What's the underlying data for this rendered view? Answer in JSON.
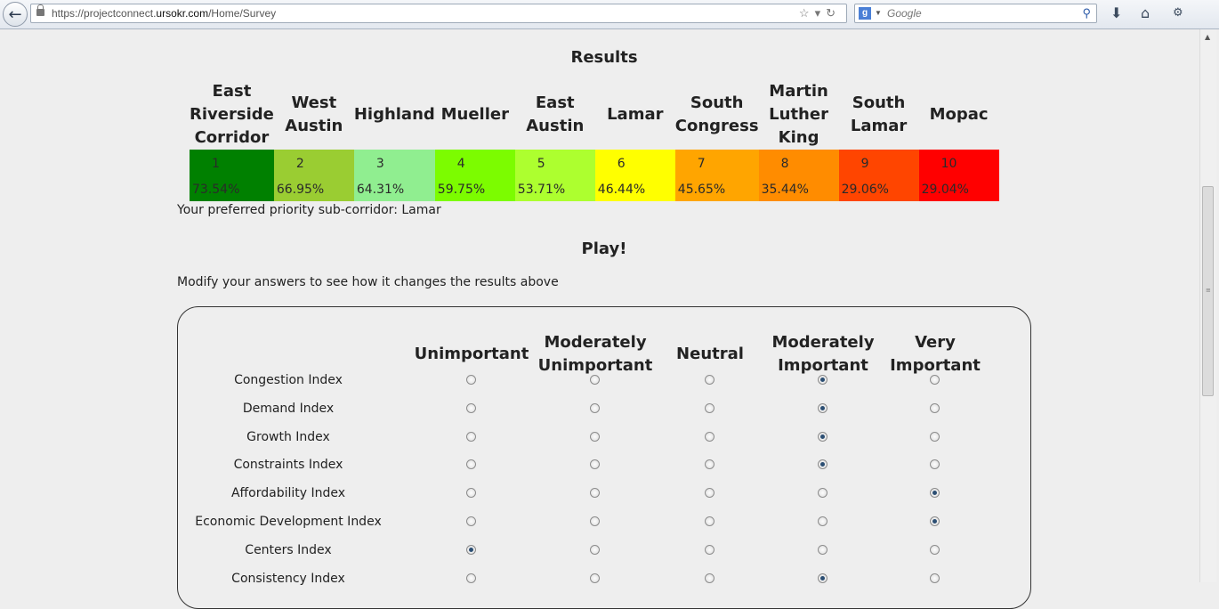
{
  "browser": {
    "url_prefix": "https://projectconnect.",
    "url_domain": "ursokr.com",
    "url_path": "/Home/Survey",
    "search_placeholder": "Google",
    "search_engine_letter": "g"
  },
  "results": {
    "title": "Results",
    "corridors": [
      {
        "name": "East Riverside Corridor",
        "rank": "1",
        "percent": "73.54%",
        "color": "#008000"
      },
      {
        "name": "West Austin",
        "rank": "2",
        "percent": "66.95%",
        "color": "#9acd32"
      },
      {
        "name": "Highland",
        "rank": "3",
        "percent": "64.31%",
        "color": "#90ee90"
      },
      {
        "name": "Mueller",
        "rank": "4",
        "percent": "59.75%",
        "color": "#7cfc00"
      },
      {
        "name": "East Austin",
        "rank": "5",
        "percent": "53.71%",
        "color": "#adff2f"
      },
      {
        "name": "Lamar",
        "rank": "6",
        "percent": "46.44%",
        "color": "#ffff00"
      },
      {
        "name": "South Congress",
        "rank": "7",
        "percent": "45.65%",
        "color": "#ffa500"
      },
      {
        "name": "Martin Luther King",
        "rank": "8",
        "percent": "35.44%",
        "color": "#ff8c00"
      },
      {
        "name": "South Lamar",
        "rank": "9",
        "percent": "29.06%",
        "color": "#ff4500"
      },
      {
        "name": "Mopac",
        "rank": "10",
        "percent": "29.04%",
        "color": "#ff0000"
      }
    ],
    "preferred_text": "Your preferred priority sub-corridor: Lamar"
  },
  "play": {
    "title": "Play!",
    "instructions": "Modify your answers to see how it changes the results above",
    "columns": [
      "Unimportant",
      "Moderately Unimportant",
      "Neutral",
      "Moderately Important",
      "Very Important"
    ],
    "rows": [
      {
        "label": "Congestion Index",
        "selected": 3
      },
      {
        "label": "Demand Index",
        "selected": 3
      },
      {
        "label": "Growth Index",
        "selected": 3
      },
      {
        "label": "Constraints Index",
        "selected": 3
      },
      {
        "label": "Affordability Index",
        "selected": 4
      },
      {
        "label": "Economic Development Index",
        "selected": 4
      },
      {
        "label": "Centers Index",
        "selected": 0
      },
      {
        "label": "Consistency Index",
        "selected": 3
      }
    ]
  }
}
